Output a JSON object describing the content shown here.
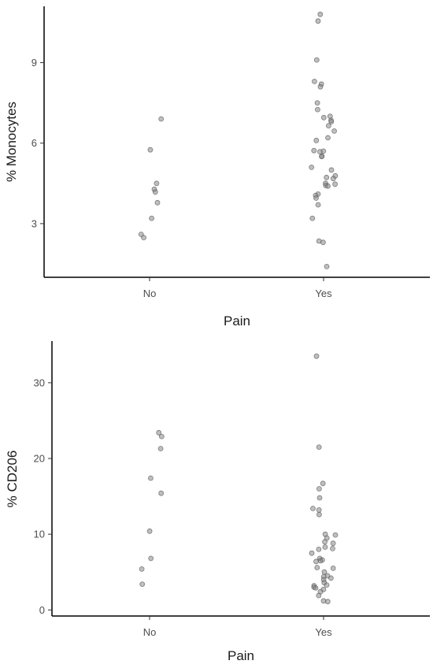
{
  "chart_data": [
    {
      "type": "scatter",
      "title": "",
      "xlabel": "Pain",
      "ylabel": "% Monocytes",
      "categories": [
        "No",
        "Yes"
      ],
      "ylim": [
        1.0,
        11.1
      ],
      "yticks": [
        3,
        6,
        9
      ],
      "grid": false,
      "point_color": "#888888",
      "points": [
        {
          "x": "No",
          "y": 6.9
        },
        {
          "x": "No",
          "y": 5.75
        },
        {
          "x": "No",
          "y": 4.5
        },
        {
          "x": "No",
          "y": 4.28
        },
        {
          "x": "No",
          "y": 4.18
        },
        {
          "x": "No",
          "y": 3.78
        },
        {
          "x": "No",
          "y": 3.2
        },
        {
          "x": "No",
          "y": 2.6
        },
        {
          "x": "No",
          "y": 2.48
        },
        {
          "x": "Yes",
          "y": 10.8
        },
        {
          "x": "Yes",
          "y": 10.55
        },
        {
          "x": "Yes",
          "y": 9.1
        },
        {
          "x": "Yes",
          "y": 8.3
        },
        {
          "x": "Yes",
          "y": 8.2
        },
        {
          "x": "Yes",
          "y": 8.1
        },
        {
          "x": "Yes",
          "y": 7.5
        },
        {
          "x": "Yes",
          "y": 7.25
        },
        {
          "x": "Yes",
          "y": 7.0
        },
        {
          "x": "Yes",
          "y": 6.95
        },
        {
          "x": "Yes",
          "y": 6.85
        },
        {
          "x": "Yes",
          "y": 6.8
        },
        {
          "x": "Yes",
          "y": 6.65
        },
        {
          "x": "Yes",
          "y": 6.45
        },
        {
          "x": "Yes",
          "y": 6.2
        },
        {
          "x": "Yes",
          "y": 6.1
        },
        {
          "x": "Yes",
          "y": 5.72
        },
        {
          "x": "Yes",
          "y": 5.7
        },
        {
          "x": "Yes",
          "y": 5.68
        },
        {
          "x": "Yes",
          "y": 5.52
        },
        {
          "x": "Yes",
          "y": 5.5
        },
        {
          "x": "Yes",
          "y": 5.1
        },
        {
          "x": "Yes",
          "y": 5.0
        },
        {
          "x": "Yes",
          "y": 4.78
        },
        {
          "x": "Yes",
          "y": 4.72
        },
        {
          "x": "Yes",
          "y": 4.68
        },
        {
          "x": "Yes",
          "y": 4.5
        },
        {
          "x": "Yes",
          "y": 4.47
        },
        {
          "x": "Yes",
          "y": 4.42
        },
        {
          "x": "Yes",
          "y": 4.4
        },
        {
          "x": "Yes",
          "y": 4.1
        },
        {
          "x": "Yes",
          "y": 4.05
        },
        {
          "x": "Yes",
          "y": 3.95
        },
        {
          "x": "Yes",
          "y": 3.7
        },
        {
          "x": "Yes",
          "y": 3.2
        },
        {
          "x": "Yes",
          "y": 2.35
        },
        {
          "x": "Yes",
          "y": 2.3
        },
        {
          "x": "Yes",
          "y": 1.4
        }
      ]
    },
    {
      "type": "scatter",
      "title": "",
      "xlabel": "Pain",
      "ylabel": "% CD206",
      "categories": [
        "No",
        "Yes"
      ],
      "ylim": [
        -0.8,
        35.5
      ],
      "yticks": [
        0,
        10,
        20,
        30
      ],
      "grid": false,
      "point_color": "#888888",
      "points": [
        {
          "x": "No",
          "y": 23.4
        },
        {
          "x": "No",
          "y": 22.9
        },
        {
          "x": "No",
          "y": 21.3
        },
        {
          "x": "No",
          "y": 17.4
        },
        {
          "x": "No",
          "y": 15.4
        },
        {
          "x": "No",
          "y": 10.4
        },
        {
          "x": "No",
          "y": 6.8
        },
        {
          "x": "No",
          "y": 5.4
        },
        {
          "x": "No",
          "y": 3.4
        },
        {
          "x": "Yes",
          "y": 33.5
        },
        {
          "x": "Yes",
          "y": 21.5
        },
        {
          "x": "Yes",
          "y": 16.7
        },
        {
          "x": "Yes",
          "y": 16.0
        },
        {
          "x": "Yes",
          "y": 14.8
        },
        {
          "x": "Yes",
          "y": 13.4
        },
        {
          "x": "Yes",
          "y": 13.2
        },
        {
          "x": "Yes",
          "y": 12.6
        },
        {
          "x": "Yes",
          "y": 10.0
        },
        {
          "x": "Yes",
          "y": 9.9
        },
        {
          "x": "Yes",
          "y": 9.5
        },
        {
          "x": "Yes",
          "y": 9.0
        },
        {
          "x": "Yes",
          "y": 8.8
        },
        {
          "x": "Yes",
          "y": 8.3
        },
        {
          "x": "Yes",
          "y": 8.1
        },
        {
          "x": "Yes",
          "y": 8.0
        },
        {
          "x": "Yes",
          "y": 7.5
        },
        {
          "x": "Yes",
          "y": 6.8
        },
        {
          "x": "Yes",
          "y": 6.6
        },
        {
          "x": "Yes",
          "y": 6.5
        },
        {
          "x": "Yes",
          "y": 6.4
        },
        {
          "x": "Yes",
          "y": 5.6
        },
        {
          "x": "Yes",
          "y": 5.5
        },
        {
          "x": "Yes",
          "y": 5.0
        },
        {
          "x": "Yes",
          "y": 4.5
        },
        {
          "x": "Yes",
          "y": 4.4
        },
        {
          "x": "Yes",
          "y": 4.2
        },
        {
          "x": "Yes",
          "y": 4.0
        },
        {
          "x": "Yes",
          "y": 3.6
        },
        {
          "x": "Yes",
          "y": 3.3
        },
        {
          "x": "Yes",
          "y": 3.2
        },
        {
          "x": "Yes",
          "y": 3.0
        },
        {
          "x": "Yes",
          "y": 2.9
        },
        {
          "x": "Yes",
          "y": 2.7
        },
        {
          "x": "Yes",
          "y": 2.4
        },
        {
          "x": "Yes",
          "y": 1.9
        },
        {
          "x": "Yes",
          "y": 1.2
        },
        {
          "x": "Yes",
          "y": 1.1
        }
      ]
    }
  ]
}
